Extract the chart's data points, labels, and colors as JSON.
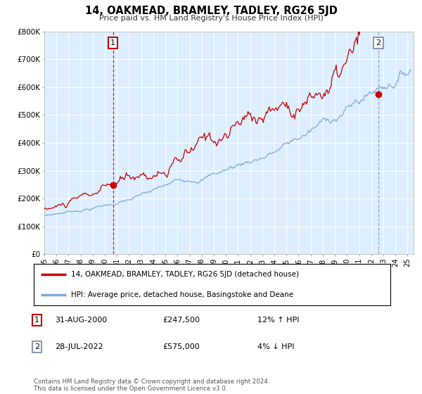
{
  "title": "14, OAKMEAD, BRAMLEY, TADLEY, RG26 5JD",
  "subtitle": "Price paid vs. HM Land Registry's House Price Index (HPI)",
  "ylabel_ticks": [
    "£0",
    "£100K",
    "£200K",
    "£300K",
    "£400K",
    "£500K",
    "£600K",
    "£700K",
    "£800K"
  ],
  "ylim": [
    0,
    800000
  ],
  "xlim_start": 1995.0,
  "xlim_end": 2025.5,
  "sale1_year": 2000.667,
  "sale1_price": 247500,
  "sale1_label": "1",
  "sale1_date": "31-AUG-2000",
  "sale1_hpi": "12% ↑ HPI",
  "sale2_year": 2022.583,
  "sale2_price": 575000,
  "sale2_label": "2",
  "sale2_date": "28-JUL-2022",
  "sale2_hpi": "4% ↓ HPI",
  "red_line_color": "#cc0000",
  "blue_line_color": "#7aaadd",
  "dot_color": "#cc0000",
  "dashed_red_color": "#cc0000",
  "dashed_blue_color": "#8899bb",
  "plot_bg_color": "#ddeeff",
  "legend_label_red": "14, OAKMEAD, BRAMLEY, TADLEY, RG26 5JD (detached house)",
  "legend_label_blue": "HPI: Average price, detached house, Basingstoke and Deane",
  "footer": "Contains HM Land Registry data © Crown copyright and database right 2024.\nThis data is licensed under the Open Government Licence v3.0.",
  "tick_years": [
    1995,
    1996,
    1997,
    1998,
    1999,
    2000,
    2001,
    2002,
    2003,
    2004,
    2005,
    2006,
    2007,
    2008,
    2009,
    2010,
    2011,
    2012,
    2013,
    2014,
    2015,
    2016,
    2017,
    2018,
    2019,
    2020,
    2021,
    2022,
    2023,
    2024,
    2025
  ]
}
